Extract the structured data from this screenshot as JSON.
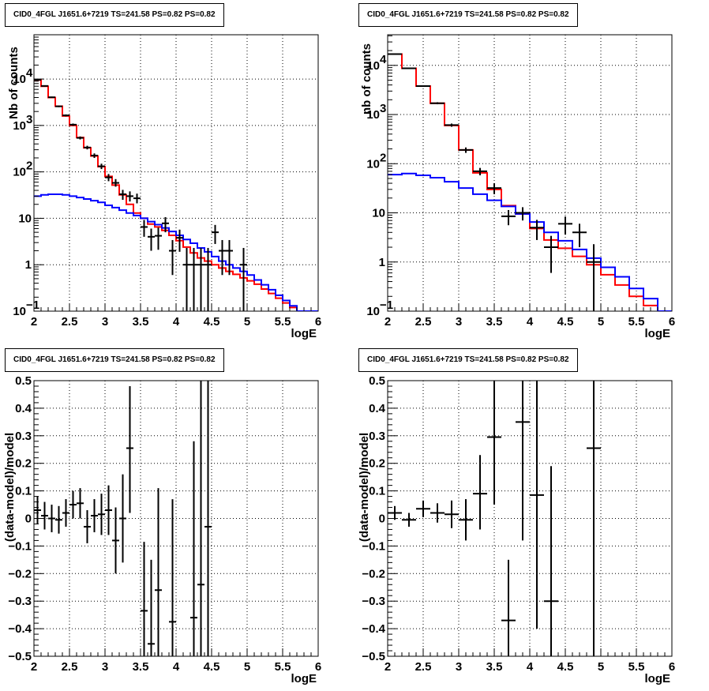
{
  "chart_data": [
    {
      "type": "step-histogram-with-errorbars",
      "title": "CID0_4FGL J1651.6+7219 TS=241.58 PS=0.82 PS=0.82",
      "xlabel": "logE",
      "ylabel": "Nb of counts",
      "log_y": true,
      "xlim": [
        2,
        6
      ],
      "ylim": [
        0.1,
        90000
      ],
      "grid": true,
      "x_ticks": [
        "2",
        "2.5",
        "3",
        "3.5",
        "4",
        "4.5",
        "5",
        "5.5",
        "6"
      ],
      "y_ticks": [
        {
          "v": 0.1,
          "base": "10",
          "exp": "−1"
        },
        {
          "v": 1,
          "base": "1",
          "exp": ""
        },
        {
          "v": 10,
          "base": "10",
          "exp": ""
        },
        {
          "v": 100,
          "base": "10",
          "exp": "2"
        },
        {
          "v": 1000,
          "base": "10",
          "exp": "3"
        },
        {
          "v": 10000,
          "base": "10",
          "exp": "4"
        }
      ],
      "bin_width": 0.1,
      "series": [
        {
          "color": "#ff0000",
          "bin_edges_start": 2.0,
          "values": [
            9500,
            7000,
            4000,
            2600,
            1600,
            1000,
            550,
            330,
            220,
            130,
            80,
            52,
            32,
            20,
            13,
            10,
            7.5,
            6.5,
            5.5,
            4.3,
            3.3,
            2.4,
            1.8,
            1.4,
            1.2,
            1.0,
            0.85,
            0.72,
            0.62,
            0.52,
            0.45,
            0.38,
            0.3,
            0.24,
            0.19,
            0.15,
            0.12,
            0.1,
            0.1,
            0.1
          ]
        },
        {
          "color": "#0000ff",
          "bin_edges_start": 2.0,
          "values": [
            30,
            32,
            33,
            33,
            32,
            30,
            28,
            26,
            24,
            22,
            19,
            17,
            15,
            13,
            11.5,
            10,
            8.5,
            7.3,
            6.2,
            5.2,
            4.3,
            3.5,
            2.9,
            2.3,
            1.9,
            1.5,
            1.2,
            1.0,
            0.85,
            0.72,
            0.6,
            0.47,
            0.37,
            0.29,
            0.22,
            0.17,
            0.13,
            0.1,
            0.1,
            0.1
          ]
        }
      ],
      "points": [
        {
          "x": 2.05,
          "y": 9600,
          "ylo": 9400,
          "yhi": 9800
        },
        {
          "x": 2.15,
          "y": 7100,
          "ylo": 6930,
          "yhi": 7270
        },
        {
          "x": 2.25,
          "y": 4050,
          "ylo": 3920,
          "yhi": 4180
        },
        {
          "x": 2.35,
          "y": 2580,
          "ylo": 2480,
          "yhi": 2680
        },
        {
          "x": 2.45,
          "y": 1650,
          "ylo": 1570,
          "yhi": 1730
        },
        {
          "x": 2.55,
          "y": 1040,
          "ylo": 980,
          "yhi": 1100
        },
        {
          "x": 2.65,
          "y": 540,
          "ylo": 500,
          "yhi": 580
        },
        {
          "x": 2.75,
          "y": 335,
          "ylo": 305,
          "yhi": 365
        },
        {
          "x": 2.85,
          "y": 225,
          "ylo": 200,
          "yhi": 250
        },
        {
          "x": 2.95,
          "y": 132,
          "ylo": 115,
          "yhi": 150
        },
        {
          "x": 3.05,
          "y": 76,
          "ylo": 63,
          "yhi": 90
        },
        {
          "x": 3.15,
          "y": 58,
          "ylo": 48,
          "yhi": 70
        },
        {
          "x": 3.25,
          "y": 33,
          "ylo": 25,
          "yhi": 41
        },
        {
          "x": 3.35,
          "y": 30,
          "ylo": 23,
          "yhi": 38
        },
        {
          "x": 3.45,
          "y": 27,
          "ylo": 21,
          "yhi": 34
        },
        {
          "x": 3.55,
          "y": 6.5,
          "ylo": 4,
          "yhi": 9.2
        },
        {
          "x": 3.65,
          "y": 4,
          "ylo": 2,
          "yhi": 6
        },
        {
          "x": 3.75,
          "y": 4.2,
          "ylo": 2.1,
          "yhi": 6.3
        },
        {
          "x": 3.85,
          "y": 7.8,
          "ylo": 5,
          "yhi": 10.6
        },
        {
          "x": 3.95,
          "y": 2,
          "ylo": 0.6,
          "yhi": 3.4
        },
        {
          "x": 4.05,
          "y": 3.8,
          "ylo": 1.9,
          "yhi": 5.7
        },
        {
          "x": 4.15,
          "y": 1,
          "ylo": 0.1,
          "yhi": 2.3
        },
        {
          "x": 4.25,
          "y": 1,
          "ylo": 0.1,
          "yhi": 2.3
        },
        {
          "x": 4.35,
          "y": 1,
          "ylo": 0.1,
          "yhi": 2.3
        },
        {
          "x": 4.45,
          "y": 1,
          "ylo": 0.1,
          "yhi": 2.3
        },
        {
          "x": 4.55,
          "y": 5,
          "ylo": 2.8,
          "yhi": 7.2
        },
        {
          "x": 4.65,
          "y": 2,
          "ylo": 0.6,
          "yhi": 3.4
        },
        {
          "x": 4.75,
          "y": 2,
          "ylo": 0.6,
          "yhi": 3.4
        },
        {
          "x": 4.95,
          "y": 1,
          "ylo": 0.1,
          "yhi": 2.3
        }
      ]
    },
    {
      "type": "step-histogram-with-errorbars",
      "title": "CID0_4FGL J1651.6+7219 TS=241.58 PS=0.82 PS=0.82",
      "xlabel": "logE",
      "ylabel": "nb of counts",
      "log_y": true,
      "xlim": [
        2,
        6
      ],
      "ylim": [
        0.1,
        42000
      ],
      "grid": true,
      "x_ticks": [
        "2",
        "2.5",
        "3",
        "3.5",
        "4",
        "4.5",
        "5",
        "5.5",
        "6"
      ],
      "y_ticks": [
        {
          "v": 0.1,
          "base": "10",
          "exp": "−1"
        },
        {
          "v": 1,
          "base": "1",
          "exp": ""
        },
        {
          "v": 10,
          "base": "10",
          "exp": ""
        },
        {
          "v": 100,
          "base": "10",
          "exp": "2"
        },
        {
          "v": 1000,
          "base": "10",
          "exp": "3"
        },
        {
          "v": 10000,
          "base": "10",
          "exp": "4"
        }
      ],
      "bin_width": 0.2,
      "series": [
        {
          "color": "#ff0000",
          "bin_edges_start": 2.0,
          "values": [
            17000,
            8700,
            3800,
            1700,
            600,
            190,
            65,
            30,
            14,
            9.5,
            4.8,
            2.8,
            1.9,
            1.3,
            0.88,
            0.55,
            0.34,
            0.2,
            0.13,
            0.1
          ]
        },
        {
          "color": "#0000ff",
          "bin_edges_start": 2.0,
          "values": [
            60,
            63,
            58,
            52,
            43,
            32,
            24,
            18,
            13.5,
            9.5,
            6.5,
            4.0,
            2.7,
            1.8,
            1.2,
            0.78,
            0.5,
            0.29,
            0.18,
            0.1
          ]
        }
      ],
      "points": [
        {
          "x": 2.1,
          "y": 17000,
          "ylo": 16700,
          "yhi": 17300
        },
        {
          "x": 2.3,
          "y": 8700,
          "ylo": 8500,
          "yhi": 8900
        },
        {
          "x": 2.5,
          "y": 3800,
          "ylo": 3680,
          "yhi": 3920
        },
        {
          "x": 2.7,
          "y": 1700,
          "ylo": 1620,
          "yhi": 1780
        },
        {
          "x": 2.9,
          "y": 610,
          "ylo": 565,
          "yhi": 655
        },
        {
          "x": 3.1,
          "y": 190,
          "ylo": 166,
          "yhi": 214
        },
        {
          "x": 3.3,
          "y": 70,
          "ylo": 58,
          "yhi": 82
        },
        {
          "x": 3.5,
          "y": 32,
          "ylo": 24,
          "yhi": 40
        },
        {
          "x": 3.7,
          "y": 8.5,
          "ylo": 5.6,
          "yhi": 11.4
        },
        {
          "x": 3.9,
          "y": 10,
          "ylo": 7,
          "yhi": 13
        },
        {
          "x": 4.1,
          "y": 5,
          "ylo": 2.8,
          "yhi": 7.2
        },
        {
          "x": 4.3,
          "y": 2,
          "ylo": 0.6,
          "yhi": 3.4
        },
        {
          "x": 4.5,
          "y": 6,
          "ylo": 3.6,
          "yhi": 8.4
        },
        {
          "x": 4.7,
          "y": 4,
          "ylo": 2,
          "yhi": 6
        },
        {
          "x": 4.9,
          "y": 1,
          "ylo": 0.1,
          "yhi": 2.3
        }
      ]
    },
    {
      "type": "scatter-with-errorbars",
      "title": "CID0_4FGL J1651.6+7219 TS=241.58 PS=0.82 PS=0.82",
      "xlabel": "logE",
      "ylabel": "(data-model)/model",
      "log_y": false,
      "xlim": [
        2,
        6
      ],
      "ylim": [
        -0.5,
        0.5
      ],
      "grid": true,
      "x_ticks": [
        "2",
        "2.5",
        "3",
        "3.5",
        "4",
        "4.5",
        "5",
        "5.5",
        "6"
      ],
      "y_ticks": [
        "−0.5",
        "−0.4",
        "−0.3",
        "−0.2",
        "−0.1",
        "0",
        "0.1",
        "0.2",
        "0.3",
        "0.4",
        "0.5"
      ],
      "bin_width": 0.1,
      "points": [
        {
          "x": 2.05,
          "y": 0.03,
          "ylo": -0.02,
          "yhi": 0.08
        },
        {
          "x": 2.15,
          "y": 0.01,
          "ylo": -0.04,
          "yhi": 0.06
        },
        {
          "x": 2.25,
          "y": 0.0,
          "ylo": -0.05,
          "yhi": 0.05
        },
        {
          "x": 2.35,
          "y": -0.005,
          "ylo": -0.055,
          "yhi": 0.045
        },
        {
          "x": 2.45,
          "y": 0.02,
          "ylo": -0.03,
          "yhi": 0.07
        },
        {
          "x": 2.55,
          "y": 0.05,
          "ylo": 0.0,
          "yhi": 0.1
        },
        {
          "x": 2.65,
          "y": 0.055,
          "ylo": 0.0,
          "yhi": 0.11
        },
        {
          "x": 2.75,
          "y": -0.03,
          "ylo": -0.09,
          "yhi": 0.03
        },
        {
          "x": 2.85,
          "y": 0.01,
          "ylo": -0.05,
          "yhi": 0.07
        },
        {
          "x": 2.95,
          "y": 0.015,
          "ylo": -0.06,
          "yhi": 0.09
        },
        {
          "x": 3.05,
          "y": 0.03,
          "ylo": -0.06,
          "yhi": 0.12
        },
        {
          "x": 3.15,
          "y": -0.08,
          "ylo": -0.2,
          "yhi": 0.04
        },
        {
          "x": 3.25,
          "y": 0.0,
          "ylo": -0.16,
          "yhi": 0.16
        },
        {
          "x": 3.35,
          "y": 0.255,
          "ylo": 0.02,
          "yhi": 0.48
        },
        {
          "x": 3.55,
          "y": -0.335,
          "ylo": -0.5,
          "yhi": -0.085
        },
        {
          "x": 3.65,
          "y": -0.455,
          "ylo": -0.5,
          "yhi": -0.15
        },
        {
          "x": 3.75,
          "y": -0.26,
          "ylo": -0.5,
          "yhi": 0.11
        },
        {
          "x": 3.95,
          "y": -0.375,
          "ylo": -0.5,
          "yhi": 0.07
        },
        {
          "x": 4.25,
          "y": -0.36,
          "ylo": -0.5,
          "yhi": 0.28
        },
        {
          "x": 4.35,
          "y": -0.24,
          "ylo": -0.5,
          "yhi": 0.5
        },
        {
          "x": 4.45,
          "y": -0.03,
          "ylo": -0.5,
          "yhi": 0.5
        }
      ]
    },
    {
      "type": "scatter-with-errorbars",
      "title": "CID0_4FGL J1651.6+7219 TS=241.58 PS=0.82 PS=0.82",
      "xlabel": "logE",
      "ylabel": "(data-model)/model",
      "log_y": false,
      "xlim": [
        2,
        6
      ],
      "ylim": [
        -0.5,
        0.5
      ],
      "grid": true,
      "x_ticks": [
        "2",
        "2.5",
        "3",
        "3.5",
        "4",
        "4.5",
        "5",
        "5.5",
        "6"
      ],
      "y_ticks": [
        "−0.5",
        "−0.4",
        "−0.3",
        "−0.2",
        "−0.1",
        "0",
        "0.1",
        "0.2",
        "0.3",
        "0.4",
        "0.5"
      ],
      "bin_width": 0.2,
      "points": [
        {
          "x": 2.1,
          "y": 0.02,
          "ylo": -0.005,
          "yhi": 0.045
        },
        {
          "x": 2.3,
          "y": -0.005,
          "ylo": -0.03,
          "yhi": 0.02
        },
        {
          "x": 2.5,
          "y": 0.035,
          "ylo": 0.005,
          "yhi": 0.065
        },
        {
          "x": 2.7,
          "y": 0.02,
          "ylo": -0.015,
          "yhi": 0.055
        },
        {
          "x": 2.9,
          "y": 0.015,
          "ylo": -0.035,
          "yhi": 0.065
        },
        {
          "x": 3.1,
          "y": -0.005,
          "ylo": -0.08,
          "yhi": 0.07
        },
        {
          "x": 3.3,
          "y": 0.09,
          "ylo": -0.04,
          "yhi": 0.23
        },
        {
          "x": 3.5,
          "y": 0.295,
          "ylo": 0.05,
          "yhi": 0.5
        },
        {
          "x": 3.7,
          "y": -0.37,
          "ylo": -0.5,
          "yhi": -0.15
        },
        {
          "x": 3.9,
          "y": 0.35,
          "ylo": -0.08,
          "yhi": 0.5
        },
        {
          "x": 4.1,
          "y": 0.085,
          "ylo": -0.4,
          "yhi": 0.5
        },
        {
          "x": 4.3,
          "y": -0.3,
          "ylo": -0.5,
          "yhi": 0.19
        },
        {
          "x": 4.9,
          "y": 0.255,
          "ylo": -0.5,
          "yhi": 0.5
        }
      ]
    }
  ],
  "colors": {
    "model_total": "#ff0000",
    "model_background": "#0000ff",
    "data": "#000000",
    "grid": "#000000"
  }
}
